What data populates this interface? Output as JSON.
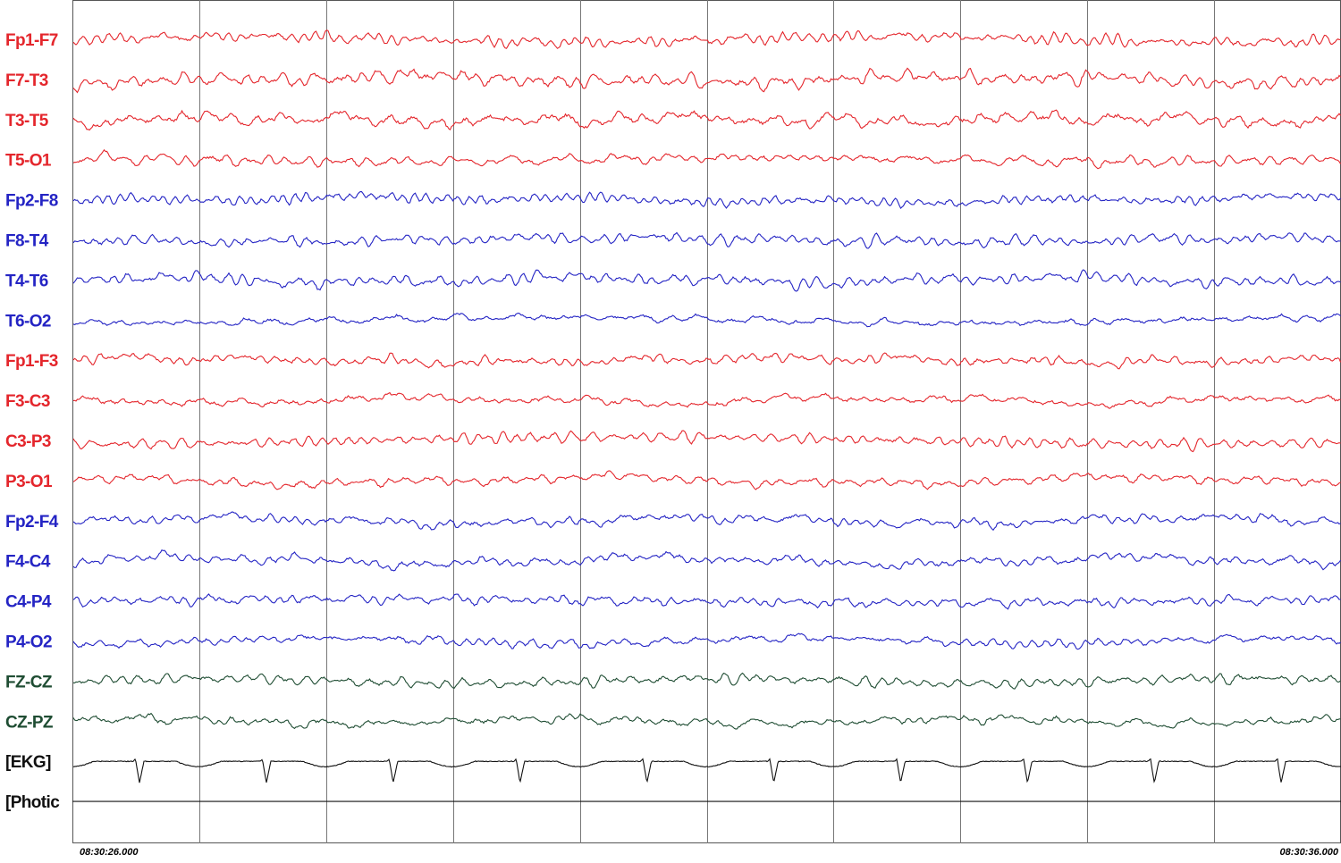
{
  "channels": [
    {
      "label": "Fp1-F7",
      "color": "#e4262c"
    },
    {
      "label": "F7-T3",
      "color": "#e4262c"
    },
    {
      "label": "T3-T5",
      "color": "#e4262c"
    },
    {
      "label": "T5-O1",
      "color": "#e4262c"
    },
    {
      "label": "Fp2-F8",
      "color": "#2424c4"
    },
    {
      "label": "F8-T4",
      "color": "#2424c4"
    },
    {
      "label": "T4-T6",
      "color": "#2424c4"
    },
    {
      "label": "T6-O2",
      "color": "#2424c4"
    },
    {
      "label": "Fp1-F3",
      "color": "#e4262c"
    },
    {
      "label": "F3-C3",
      "color": "#e4262c"
    },
    {
      "label": "C3-P3",
      "color": "#e4262c"
    },
    {
      "label": "P3-O1",
      "color": "#e4262c"
    },
    {
      "label": "Fp2-F4",
      "color": "#2424c4"
    },
    {
      "label": "F4-C4",
      "color": "#2424c4"
    },
    {
      "label": "C4-P4",
      "color": "#2424c4"
    },
    {
      "label": "P4-O2",
      "color": "#2424c4"
    },
    {
      "label": "FZ-CZ",
      "color": "#1f4d33"
    },
    {
      "label": "CZ-PZ",
      "color": "#1f4d33"
    },
    {
      "label": "[EKG]",
      "color": "#111111"
    },
    {
      "label": "[Photic",
      "color": "#111111"
    }
  ],
  "time_start": "08:30:26.000",
  "time_end": "08:30:36.000"
}
